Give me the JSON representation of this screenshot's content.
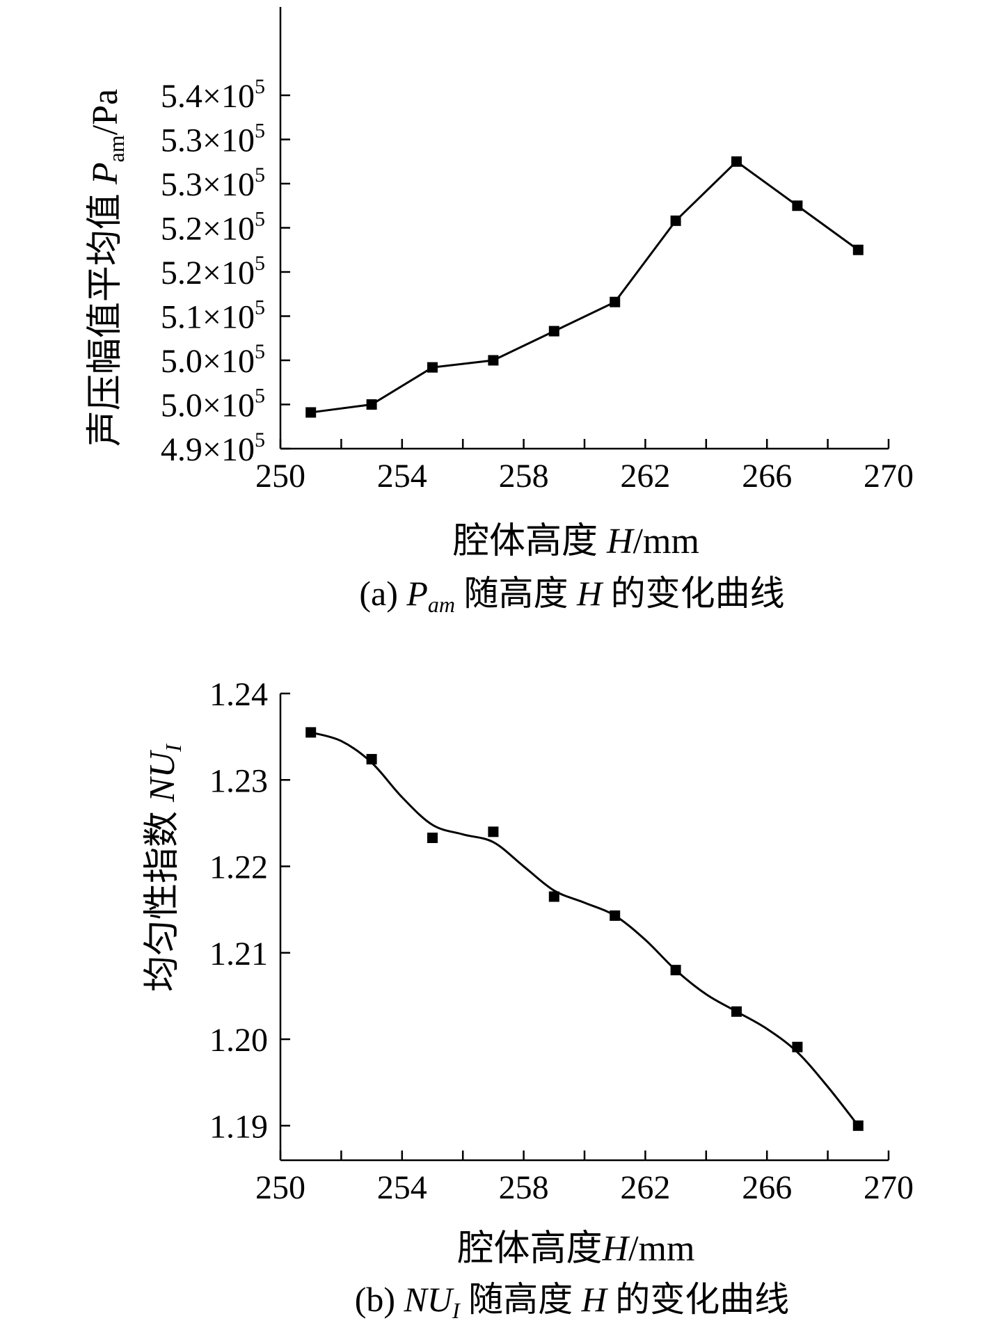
{
  "chart_data": [
    {
      "type": "line",
      "title": "",
      "caption": {
        "prefix": "(a) ",
        "symbol": "P",
        "symbol_sub": "am",
        "rest_text": " 随高度 ",
        "var": "H",
        "suffix": " 的变化曲线"
      },
      "xlabel": {
        "text": "腔体高度 ",
        "var": "H",
        "unit": "/mm"
      },
      "ylabel": {
        "text": "声压幅值平均值 ",
        "var": "P",
        "sub": "am",
        "unit": "/Pa"
      },
      "xlim": [
        250,
        270
      ],
      "x_ticks": [
        250,
        254,
        258,
        262,
        266,
        270
      ],
      "x_minor_ticks": [
        252,
        256,
        260,
        264,
        268
      ],
      "ylim": [
        4.9,
        5.4
      ],
      "y_ticks": [
        {
          "value": 4.9,
          "label": "4.9×10",
          "exp": "5"
        },
        {
          "value": 4.95,
          "label": "5.0×10",
          "exp": "5"
        },
        {
          "value": 5.0,
          "label": "5.0×10",
          "exp": "5"
        },
        {
          "value": 5.05,
          "label": "5.1×10",
          "exp": "5"
        },
        {
          "value": 5.1,
          "label": "5.2×10",
          "exp": "5"
        },
        {
          "value": 5.15,
          "label": "5.2×10",
          "exp": "5"
        },
        {
          "value": 5.2,
          "label": "5.3×10",
          "exp": "5"
        },
        {
          "value": 5.25,
          "label": "5.3×10",
          "exp": "5"
        },
        {
          "value": 5.3,
          "label": "5.4×10",
          "exp": "5"
        }
      ],
      "line_style": "straight",
      "series": [
        {
          "name": "Pam",
          "x": [
            251,
            253,
            255,
            257,
            259,
            261,
            263,
            265,
            267,
            269
          ],
          "values": [
            4.941,
            4.95,
            4.992,
            5.0,
            5.033,
            5.066,
            5.158,
            5.225,
            5.175,
            5.125
          ]
        }
      ]
    },
    {
      "type": "scatter",
      "title": "",
      "caption": {
        "prefix": "(b) ",
        "symbol": "NU",
        "symbol_sub": "I",
        "rest_text": " 随高度 ",
        "var": "H",
        "suffix": " 的变化曲线"
      },
      "xlabel": {
        "text": "腔体高度",
        "var": "H",
        "unit": "/mm"
      },
      "ylabel": {
        "text": "均匀性指数 ",
        "var": "NU",
        "sub": "I",
        "unit": ""
      },
      "xlim": [
        250,
        270
      ],
      "x_ticks": [
        250,
        254,
        258,
        262,
        266,
        270
      ],
      "x_minor_ticks": [
        252,
        256,
        260,
        264,
        268
      ],
      "ylim": [
        1.186,
        1.24
      ],
      "y_ticks": [
        {
          "value": 1.19,
          "label": "1.19"
        },
        {
          "value": 1.2,
          "label": "1.20"
        },
        {
          "value": 1.21,
          "label": "1.21"
        },
        {
          "value": 1.22,
          "label": "1.22"
        },
        {
          "value": 1.23,
          "label": "1.23"
        },
        {
          "value": 1.24,
          "label": "1.24"
        }
      ],
      "line_style": "smooth-fit",
      "series": [
        {
          "name": "NUI",
          "x": [
            251,
            253,
            255,
            257,
            259,
            261,
            263,
            265,
            267,
            269
          ],
          "values": [
            1.2355,
            1.2324,
            1.2233,
            1.224,
            1.2165,
            1.2143,
            1.208,
            1.2032,
            1.1991,
            1.19
          ]
        }
      ],
      "fit_curve": {
        "x": [
          251,
          252,
          253,
          254,
          255,
          256,
          257,
          258,
          259,
          260,
          261,
          262,
          263,
          264,
          265,
          266,
          267,
          268,
          269
        ],
        "values": [
          1.2355,
          1.2345,
          1.232,
          1.228,
          1.2248,
          1.2237,
          1.2228,
          1.22,
          1.2172,
          1.2158,
          1.2143,
          1.2115,
          1.208,
          1.2052,
          1.2032,
          1.2012,
          1.1985,
          1.1945,
          1.19
        ]
      }
    }
  ]
}
